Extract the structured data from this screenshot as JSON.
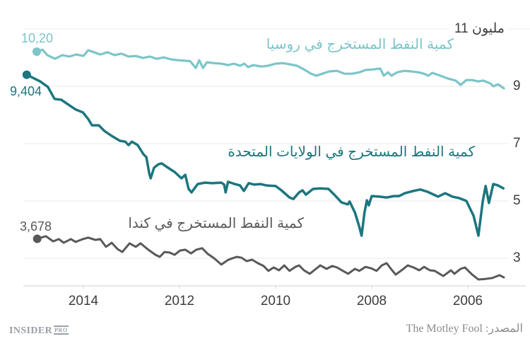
{
  "chart_data": {
    "type": "line",
    "y_axis": {
      "top_label": "11 مليون",
      "ticks": [
        11,
        9,
        7,
        5,
        3
      ],
      "min": 1.8,
      "max": 11,
      "grid": true,
      "labels_position": "right"
    },
    "x_axis": {
      "ticks": [
        2014,
        2012,
        2010,
        2008,
        2006
      ],
      "reversed": true,
      "min": 2005.2,
      "max": 2015.3
    },
    "colors": {
      "grid": "#e9e9e9",
      "axis": "#d2d2d2",
      "tick_text": "#3d3d3d"
    },
    "series": [
      {
        "name": "russia",
        "label": "كمية النفط المستخرج في روسيا",
        "start_label": "10,20",
        "color": "#7cc5c8",
        "width": 3.2,
        "points": [
          [
            2014.97,
            10.21
          ],
          [
            2014.85,
            10.28
          ],
          [
            2014.75,
            10.09
          ],
          [
            2014.59,
            9.96
          ],
          [
            2014.44,
            10.09
          ],
          [
            2014.29,
            10.04
          ],
          [
            2014.15,
            10.11
          ],
          [
            2014.0,
            10.06
          ],
          [
            2013.9,
            10.26
          ],
          [
            2013.78,
            10.19
          ],
          [
            2013.65,
            10.11
          ],
          [
            2013.5,
            10.19
          ],
          [
            2013.35,
            10.09
          ],
          [
            2013.21,
            10.14
          ],
          [
            2013.06,
            10.04
          ],
          [
            2012.91,
            10.06
          ],
          [
            2012.76,
            9.99
          ],
          [
            2012.62,
            10.04
          ],
          [
            2012.47,
            9.96
          ],
          [
            2012.32,
            10.01
          ],
          [
            2012.18,
            9.94
          ],
          [
            2012.03,
            9.91
          ],
          [
            2011.78,
            9.88
          ],
          [
            2011.66,
            9.64
          ],
          [
            2011.59,
            9.91
          ],
          [
            2011.51,
            9.64
          ],
          [
            2011.43,
            9.84
          ],
          [
            2011.29,
            9.81
          ],
          [
            2011.13,
            9.79
          ],
          [
            2010.99,
            9.74
          ],
          [
            2010.87,
            9.79
          ],
          [
            2010.74,
            9.72
          ],
          [
            2010.65,
            9.79
          ],
          [
            2010.57,
            9.67
          ],
          [
            2010.47,
            9.74
          ],
          [
            2010.29,
            9.69
          ],
          [
            2010.15,
            9.72
          ],
          [
            2010.0,
            9.79
          ],
          [
            2009.85,
            9.81
          ],
          [
            2009.71,
            9.77
          ],
          [
            2009.56,
            9.72
          ],
          [
            2009.41,
            9.59
          ],
          [
            2009.26,
            9.44
          ],
          [
            2009.15,
            9.37
          ],
          [
            2009.03,
            9.44
          ],
          [
            2008.88,
            9.52
          ],
          [
            2008.72,
            9.54
          ],
          [
            2008.56,
            9.44
          ],
          [
            2008.41,
            9.44
          ],
          [
            2008.26,
            9.49
          ],
          [
            2008.12,
            9.57
          ],
          [
            2007.97,
            9.59
          ],
          [
            2007.82,
            9.62
          ],
          [
            2007.75,
            9.37
          ],
          [
            2007.66,
            9.49
          ],
          [
            2007.59,
            9.37
          ],
          [
            2007.47,
            9.49
          ],
          [
            2007.32,
            9.54
          ],
          [
            2007.18,
            9.52
          ],
          [
            2007.03,
            9.49
          ],
          [
            2006.91,
            9.44
          ],
          [
            2006.82,
            9.37
          ],
          [
            2006.74,
            9.47
          ],
          [
            2006.57,
            9.37
          ],
          [
            2006.41,
            9.27
          ],
          [
            2006.25,
            9.2
          ],
          [
            2006.15,
            9.05
          ],
          [
            2006.03,
            9.22
          ],
          [
            2005.91,
            9.22
          ],
          [
            2005.79,
            9.17
          ],
          [
            2005.68,
            9.2
          ],
          [
            2005.53,
            9.1
          ],
          [
            2005.47,
            9.0
          ],
          [
            2005.37,
            9.07
          ],
          [
            2005.25,
            8.93
          ]
        ]
      },
      {
        "name": "united-states",
        "label": "كمية النفط المستخرج في الولايات المتحدة",
        "start_label": "9,404",
        "color": "#1b767e",
        "width": 3.5,
        "points": [
          [
            2015.18,
            9.404
          ],
          [
            2014.9,
            9.17
          ],
          [
            2014.74,
            8.98
          ],
          [
            2014.6,
            8.56
          ],
          [
            2014.46,
            8.53
          ],
          [
            2014.31,
            8.36
          ],
          [
            2014.16,
            8.19
          ],
          [
            2014.01,
            8.09
          ],
          [
            2013.9,
            7.86
          ],
          [
            2013.82,
            7.64
          ],
          [
            2013.68,
            7.64
          ],
          [
            2013.56,
            7.44
          ],
          [
            2013.41,
            7.27
          ],
          [
            2013.24,
            7.1
          ],
          [
            2013.13,
            7.07
          ],
          [
            2013.06,
            6.95
          ],
          [
            2012.99,
            7.07
          ],
          [
            2012.87,
            6.95
          ],
          [
            2012.75,
            6.63
          ],
          [
            2012.69,
            6.53
          ],
          [
            2012.63,
            5.96
          ],
          [
            2012.6,
            5.79
          ],
          [
            2012.53,
            6.16
          ],
          [
            2012.44,
            6.28
          ],
          [
            2012.37,
            6.31
          ],
          [
            2012.24,
            6.16
          ],
          [
            2012.1,
            6.01
          ],
          [
            2011.96,
            5.79
          ],
          [
            2011.88,
            5.91
          ],
          [
            2011.81,
            5.42
          ],
          [
            2011.75,
            5.3
          ],
          [
            2011.62,
            5.59
          ],
          [
            2011.47,
            5.64
          ],
          [
            2011.32,
            5.62
          ],
          [
            2011.13,
            5.64
          ],
          [
            2011.07,
            5.57
          ],
          [
            2011.04,
            5.3
          ],
          [
            2010.99,
            5.67
          ],
          [
            2010.85,
            5.59
          ],
          [
            2010.74,
            5.54
          ],
          [
            2010.66,
            5.35
          ],
          [
            2010.56,
            5.62
          ],
          [
            2010.44,
            5.57
          ],
          [
            2010.32,
            5.59
          ],
          [
            2010.19,
            5.54
          ],
          [
            2010.0,
            5.52
          ],
          [
            2009.88,
            5.37
          ],
          [
            2009.71,
            5.12
          ],
          [
            2009.63,
            5.07
          ],
          [
            2009.51,
            5.3
          ],
          [
            2009.44,
            5.37
          ],
          [
            2009.37,
            5.22
          ],
          [
            2009.22,
            5.42
          ],
          [
            2009.07,
            5.44
          ],
          [
            2008.9,
            5.42
          ],
          [
            2008.78,
            5.22
          ],
          [
            2008.63,
            4.95
          ],
          [
            2008.5,
            4.88
          ],
          [
            2008.46,
            4.98
          ],
          [
            2008.35,
            4.6
          ],
          [
            2008.26,
            4.11
          ],
          [
            2008.21,
            3.79
          ],
          [
            2008.15,
            4.6
          ],
          [
            2008.1,
            5.02
          ],
          [
            2008.06,
            4.85
          ],
          [
            2008.0,
            5.17
          ],
          [
            2007.84,
            5.15
          ],
          [
            2007.69,
            5.12
          ],
          [
            2007.54,
            5.17
          ],
          [
            2007.43,
            5.17
          ],
          [
            2007.31,
            5.27
          ],
          [
            2007.13,
            5.35
          ],
          [
            2006.99,
            5.4
          ],
          [
            2006.84,
            5.32
          ],
          [
            2006.62,
            5.15
          ],
          [
            2006.47,
            5.27
          ],
          [
            2006.32,
            5.15
          ],
          [
            2006.18,
            5.1
          ],
          [
            2006.03,
            5.0
          ],
          [
            2005.88,
            4.48
          ],
          [
            2005.78,
            3.79
          ],
          [
            2005.69,
            4.98
          ],
          [
            2005.63,
            5.52
          ],
          [
            2005.56,
            4.93
          ],
          [
            2005.47,
            5.59
          ],
          [
            2005.37,
            5.54
          ],
          [
            2005.26,
            5.44
          ]
        ]
      },
      {
        "name": "canada",
        "label": "كمية النفط المستخرج في كندا",
        "start_label": "3,678",
        "color": "#58595b",
        "width": 3,
        "points": [
          [
            2014.96,
            3.678
          ],
          [
            2014.78,
            3.77
          ],
          [
            2014.63,
            3.59
          ],
          [
            2014.51,
            3.67
          ],
          [
            2014.41,
            3.54
          ],
          [
            2014.26,
            3.67
          ],
          [
            2014.16,
            3.57
          ],
          [
            2014.01,
            3.67
          ],
          [
            2013.9,
            3.72
          ],
          [
            2013.75,
            3.64
          ],
          [
            2013.65,
            3.67
          ],
          [
            2013.53,
            3.4
          ],
          [
            2013.41,
            3.54
          ],
          [
            2013.29,
            3.32
          ],
          [
            2013.19,
            3.22
          ],
          [
            2013.04,
            3.52
          ],
          [
            2012.91,
            3.4
          ],
          [
            2012.81,
            3.52
          ],
          [
            2012.65,
            3.3
          ],
          [
            2012.5,
            3.12
          ],
          [
            2012.41,
            3.05
          ],
          [
            2012.31,
            3.22
          ],
          [
            2012.21,
            3.2
          ],
          [
            2012.1,
            3.12
          ],
          [
            2011.99,
            3.27
          ],
          [
            2011.88,
            3.3
          ],
          [
            2011.76,
            3.17
          ],
          [
            2011.65,
            3.3
          ],
          [
            2011.53,
            3.35
          ],
          [
            2011.41,
            3.15
          ],
          [
            2011.28,
            3.0
          ],
          [
            2011.13,
            2.78
          ],
          [
            2011.0,
            2.93
          ],
          [
            2010.93,
            2.98
          ],
          [
            2010.81,
            3.05
          ],
          [
            2010.71,
            3.02
          ],
          [
            2010.6,
            2.9
          ],
          [
            2010.49,
            2.95
          ],
          [
            2010.37,
            2.83
          ],
          [
            2010.25,
            2.73
          ],
          [
            2010.15,
            2.56
          ],
          [
            2010.04,
            2.68
          ],
          [
            2009.93,
            2.58
          ],
          [
            2009.82,
            2.75
          ],
          [
            2009.71,
            2.56
          ],
          [
            2009.59,
            2.7
          ],
          [
            2009.51,
            2.75
          ],
          [
            2009.41,
            2.58
          ],
          [
            2009.29,
            2.46
          ],
          [
            2009.16,
            2.63
          ],
          [
            2009.07,
            2.75
          ],
          [
            2008.94,
            2.63
          ],
          [
            2008.82,
            2.73
          ],
          [
            2008.72,
            2.68
          ],
          [
            2008.6,
            2.56
          ],
          [
            2008.49,
            2.46
          ],
          [
            2008.35,
            2.63
          ],
          [
            2008.26,
            2.56
          ],
          [
            2008.13,
            2.7
          ],
          [
            2008.01,
            2.65
          ],
          [
            2007.9,
            2.56
          ],
          [
            2007.79,
            2.75
          ],
          [
            2007.69,
            2.83
          ],
          [
            2007.6,
            2.63
          ],
          [
            2007.5,
            2.43
          ],
          [
            2007.38,
            2.58
          ],
          [
            2007.25,
            2.75
          ],
          [
            2007.13,
            2.68
          ],
          [
            2007.01,
            2.58
          ],
          [
            2006.91,
            2.7
          ],
          [
            2006.79,
            2.58
          ],
          [
            2006.69,
            2.56
          ],
          [
            2006.51,
            2.38
          ],
          [
            2006.35,
            2.58
          ],
          [
            2006.28,
            2.46
          ],
          [
            2006.15,
            2.63
          ],
          [
            2006.06,
            2.68
          ],
          [
            2005.91,
            2.43
          ],
          [
            2005.78,
            2.26
          ],
          [
            2005.63,
            2.28
          ],
          [
            2005.49,
            2.31
          ],
          [
            2005.34,
            2.41
          ],
          [
            2005.25,
            2.33
          ]
        ]
      }
    ]
  },
  "footer": {
    "logo_main": "INSIDER",
    "logo_sub": "PRO",
    "source": "المصدر: The Motley Fool"
  }
}
